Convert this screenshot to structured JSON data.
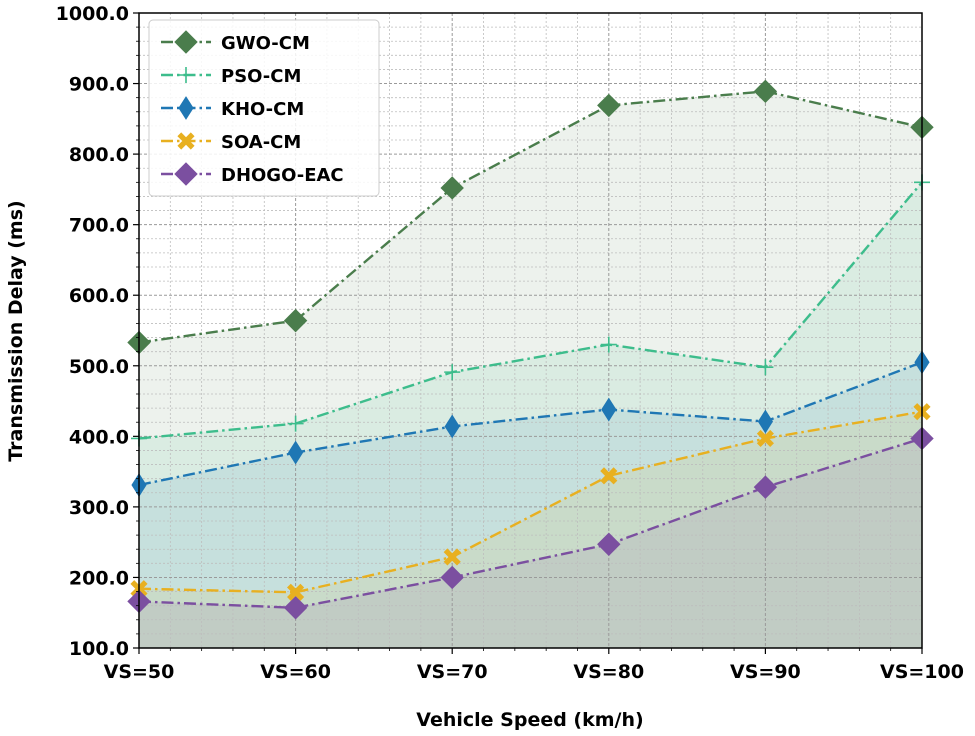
{
  "chart_data": {
    "type": "line",
    "xlabel": "Vehicle Speed (km/h)",
    "ylabel": "Transmission Delay (ms)",
    "categories": [
      "VS=50",
      "VS=60",
      "VS=70",
      "VS=80",
      "VS=90",
      "VS=100"
    ],
    "ylim": [
      100,
      1000
    ],
    "yticks": [
      "100.0",
      "200.0",
      "300.0",
      "400.0",
      "500.0",
      "600.0",
      "700.0",
      "800.0",
      "900.0",
      "1000.0"
    ],
    "grid": true,
    "fill_area": true,
    "legend_position": "top-left",
    "series": [
      {
        "name": "GWO-CM",
        "color": "#4a7d4c",
        "marker": "diamond",
        "values": [
          533,
          564,
          752,
          869,
          889,
          838
        ]
      },
      {
        "name": "PSO-CM",
        "color": "#3dbd8c",
        "marker": "plus",
        "values": [
          397,
          418,
          491,
          530,
          498,
          760
        ]
      },
      {
        "name": "KHO-CM",
        "color": "#1f77b4",
        "marker": "thin-diamond",
        "values": [
          331,
          377,
          414,
          438,
          421,
          505
        ]
      },
      {
        "name": "SOA-CM",
        "color": "#e8b020",
        "marker": "x-filled",
        "values": [
          184,
          179,
          229,
          344,
          397,
          435
        ]
      },
      {
        "name": "DHOGO-EAC",
        "color": "#7b4fa0",
        "marker": "diamond",
        "values": [
          166,
          157,
          200,
          247,
          328,
          397
        ]
      }
    ]
  }
}
